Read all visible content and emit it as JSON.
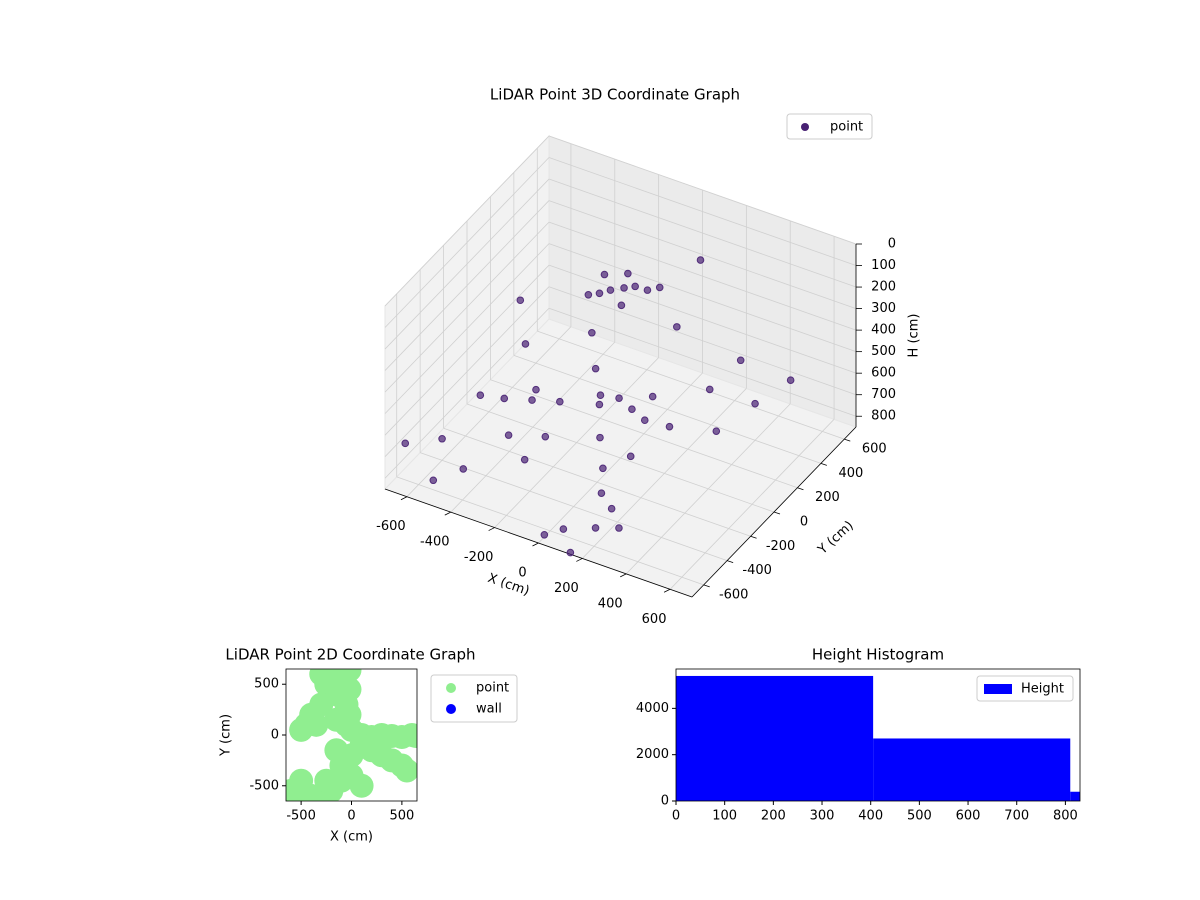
{
  "chart_data": [
    {
      "type": "scatter3d",
      "title": "LiDAR Point 3D Coordinate Graph",
      "x_label": "X (cm)",
      "y_label": "Y (cm)",
      "z_label": "H (cm)",
      "xlim": [
        -700,
        700
      ],
      "ylim": [
        -700,
        700
      ],
      "zlim": [
        0,
        850
      ],
      "z_inverted": true,
      "xticks": [
        -600,
        -400,
        -200,
        0,
        200,
        400,
        600
      ],
      "yticks": [
        -600,
        -400,
        -200,
        0,
        200,
        400,
        600
      ],
      "zticks": [
        0,
        100,
        200,
        300,
        400,
        500,
        600,
        700,
        800
      ],
      "grid": true,
      "legend": "upper right",
      "series": [
        {
          "name": "point",
          "color": "#482173",
          "x": [
            -126,
            -80,
            -160,
            -40,
            -200,
            -100,
            0,
            -60,
            -180,
            40,
            100,
            80,
            40,
            0,
            -60,
            -120,
            -435,
            -380,
            -300,
            -220,
            188,
            150,
            120,
            100,
            265,
            220,
            170,
            465,
            400,
            330,
            -542,
            -450,
            -350,
            -250,
            -133,
            -60,
            20,
            100,
            -675,
            -529,
            -600,
            -450,
            140,
            60,
            180,
            -350,
            -250,
            200,
            260,
            0
          ],
          "y": [
            150,
            180,
            120,
            200,
            100,
            250,
            230,
            120,
            200,
            260,
            -350,
            -300,
            -250,
            -180,
            -100,
            -20,
            -41,
            -100,
            -160,
            -230,
            331,
            200,
            50,
            -100,
            530,
            350,
            100,
            582,
            400,
            200,
            -182,
            -150,
            -100,
            -50,
            78,
            100,
            60,
            20,
            -574,
            -608,
            -400,
            -500,
            -690,
            -600,
            -550,
            -300,
            -350,
            -450,
            -500,
            -650
          ],
          "values": [
            200,
            190,
            210,
            180,
            220,
            170,
            200,
            230,
            175,
            190,
            780,
            700,
            600,
            500,
            400,
            300,
            250,
            400,
            550,
            700,
            50,
            300,
            550,
            750,
            600,
            650,
            700,
            650,
            680,
            720,
            650,
            650,
            650,
            650,
            650,
            650,
            650,
            650,
            700,
            800,
            750,
            780,
            850,
            820,
            800,
            700,
            750,
            760,
            800,
            840
          ]
        }
      ]
    },
    {
      "type": "scatter",
      "title": "LiDAR Point 2D Coordinate Graph",
      "x_label": "X (cm)",
      "y_label": "Y (cm)",
      "xlim": [
        -650,
        650
      ],
      "ylim": [
        -650,
        650
      ],
      "xticks": [
        -500,
        0,
        500
      ],
      "yticks": [
        -500,
        0,
        500
      ],
      "legend": "outside right",
      "series": [
        {
          "name": "point",
          "color": "#90ee90",
          "x": [
            -300,
            -250,
            -200,
            -150,
            -100,
            -50,
            -300,
            -400,
            -450,
            -500,
            -350,
            -150,
            -50,
            0,
            100,
            200,
            300,
            400,
            500,
            600,
            640,
            100,
            200,
            300,
            400,
            500,
            550,
            0,
            -100,
            0,
            100,
            -200,
            -300,
            -400,
            -500,
            -600,
            -550,
            -250,
            -150,
            -100,
            -20,
            -20,
            -20
          ],
          "values": [
            600,
            500,
            600,
            400,
            550,
            300,
            300,
            200,
            100,
            50,
            100,
            150,
            100,
            50,
            0,
            -20,
            0,
            -10,
            -20,
            0,
            -10,
            -100,
            -150,
            -200,
            -250,
            -300,
            -350,
            -200,
            -300,
            -400,
            -500,
            -550,
            -600,
            -600,
            -450,
            -550,
            -600,
            -450,
            -150,
            -450,
            640,
            450,
            200
          ]
        },
        {
          "name": "wall",
          "color": "#0000ff",
          "x": [],
          "values": []
        }
      ]
    },
    {
      "type": "histogram",
      "title": "Height Histogram",
      "bins": [
        0,
        405,
        810,
        830
      ],
      "values": [
        5400,
        2700,
        400
      ],
      "xlim": [
        0,
        830
      ],
      "ylim": [
        0,
        5700
      ],
      "xticks": [
        0,
        100,
        200,
        300,
        400,
        500,
        600,
        700,
        800
      ],
      "yticks": [
        0,
        2000,
        4000
      ],
      "legend": "upper right",
      "name": "Height",
      "color": "#0000ff"
    }
  ]
}
